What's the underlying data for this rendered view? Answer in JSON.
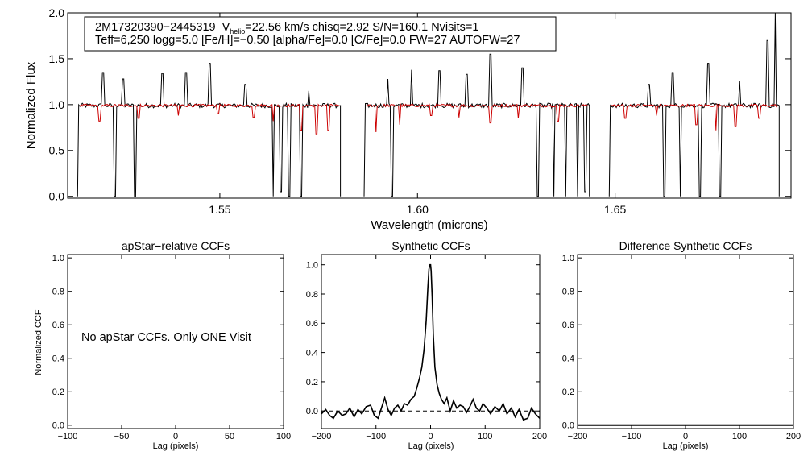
{
  "chart_data": [
    {
      "type": "line",
      "xlabel": "Wavelength (microns)",
      "ylabel": "Normalized Flux",
      "xlim": [
        1.5115,
        1.6945
      ],
      "ylim": [
        -0.02,
        2.0
      ],
      "xticks": [
        1.55,
        1.6,
        1.65
      ],
      "xtick_labels": [
        "1.55",
        "1.60",
        "1.65"
      ],
      "yticks": [
        0.0,
        0.5,
        1.0,
        1.5,
        2.0
      ],
      "ytick_labels": [
        "0.0",
        "0.5",
        "1.0",
        "1.5",
        "2.0"
      ],
      "annotation": {
        "star_id": "2M17320390−2445319",
        "v_symbol": "V",
        "v_sub": "helio",
        "line1_rest": "=22.56 km/s  chisq=2.92  S/N=160.1  Nvisits=1",
        "line2": "Teff=6,250 logg=5.0 [Fe/H]=−0.50 [alpha/Fe]=0.0 [C/Fe]=0.0 FW=27 AUTOFW=27"
      },
      "chips": [
        [
          1.514,
          1.5805
        ],
        [
          1.5865,
          1.6435
        ],
        [
          1.6485,
          1.6915
        ]
      ],
      "continuum": 0.99,
      "series": [
        {
          "color": "#000000",
          "emission_spikes": [
            [
              1.5205,
              1.35
            ],
            [
              1.5255,
              1.28
            ],
            [
              1.5355,
              1.34
            ],
            [
              1.5415,
              1.35
            ],
            [
              1.5475,
              1.45
            ],
            [
              1.5565,
              1.22
            ],
            [
              1.5725,
              1.15
            ],
            [
              1.5925,
              1.28
            ],
            [
              1.5985,
              1.38
            ],
            [
              1.6055,
              1.37
            ],
            [
              1.6125,
              1.33
            ],
            [
              1.6185,
              1.55
            ],
            [
              1.6265,
              1.4
            ],
            [
              1.6585,
              1.22
            ],
            [
              1.6645,
              1.35
            ],
            [
              1.6735,
              1.45
            ],
            [
              1.6815,
              1.26
            ],
            [
              1.6885,
              1.7
            ],
            [
              1.6905,
              2.0
            ]
          ],
          "deep_dips": [
            [
              1.5235,
              0.0
            ],
            [
              1.5285,
              0.0
            ],
            [
              1.5635,
              0.0
            ],
            [
              1.5655,
              0.05
            ],
            [
              1.5675,
              0.0
            ],
            [
              1.5705,
              0.0
            ],
            [
              1.5935,
              0.0
            ],
            [
              1.6305,
              0.0
            ],
            [
              1.6345,
              0.0
            ],
            [
              1.6375,
              0.0
            ],
            [
              1.6405,
              0.0
            ],
            [
              1.6425,
              0.05
            ],
            [
              1.6625,
              0.0
            ],
            [
              1.6665,
              0.0
            ],
            [
              1.6715,
              0.0
            ],
            [
              1.6765,
              0.0
            ]
          ]
        },
        {
          "color": "#cc0000",
          "absorption": [
            [
              1.5195,
              0.82
            ],
            [
              1.5295,
              0.85
            ],
            [
              1.5395,
              0.88
            ],
            [
              1.5495,
              0.9
            ],
            [
              1.5585,
              0.86
            ],
            [
              1.5635,
              0.82
            ],
            [
              1.5705,
              0.72
            ],
            [
              1.5745,
              0.68
            ],
            [
              1.5775,
              0.72
            ],
            [
              1.5895,
              0.7
            ],
            [
              1.5955,
              0.78
            ],
            [
              1.6035,
              0.88
            ],
            [
              1.6105,
              0.86
            ],
            [
              1.6185,
              0.8
            ],
            [
              1.6255,
              0.85
            ],
            [
              1.6355,
              0.82
            ],
            [
              1.6525,
              0.85
            ],
            [
              1.6605,
              0.88
            ],
            [
              1.6705,
              0.78
            ],
            [
              1.6755,
              0.72
            ],
            [
              1.6805,
              0.76
            ],
            [
              1.6865,
              0.85
            ]
          ]
        }
      ]
    },
    {
      "type": "line",
      "title": "apStar−relative CCFs",
      "xlabel": "Lag (pixels)",
      "ylabel": "Normalized CCF",
      "xlim": [
        -100,
        100
      ],
      "ylim": [
        -0.02,
        1.02
      ],
      "xticks": [
        -100,
        -50,
        0,
        50,
        100
      ],
      "xtick_labels": [
        "−100",
        "−50",
        "0",
        "50",
        "100"
      ],
      "yticks": [
        0.0,
        0.2,
        0.4,
        0.6,
        0.8,
        1.0
      ],
      "ytick_labels": [
        "0.0",
        "0.2",
        "0.4",
        "0.6",
        "0.8",
        "1.0"
      ],
      "message": "No apStar CCFs.  Only ONE Visit",
      "series": []
    },
    {
      "type": "line",
      "title": "Synthetic CCFs",
      "xlabel": "Lag (pixels)",
      "xlim": [
        -200,
        200
      ],
      "ylim": [
        -0.12,
        1.07
      ],
      "xticks": [
        -200,
        -100,
        0,
        100,
        200
      ],
      "xtick_labels": [
        "−200",
        "−100",
        "0",
        "100",
        "200"
      ],
      "yticks": [
        0.0,
        0.2,
        0.4,
        0.6,
        0.8,
        1.0
      ],
      "ytick_labels": [
        "0.0",
        "0.2",
        "0.4",
        "0.6",
        "0.8",
        "1.0"
      ],
      "reference_line_y": 0.0,
      "series": [
        {
          "color": "#000000",
          "x": [
            -200,
            -192,
            -185,
            -178,
            -170,
            -162,
            -155,
            -148,
            -140,
            -133,
            -126,
            -118,
            -110,
            -103,
            -96,
            -90,
            -84,
            -78,
            -72,
            -66,
            -60,
            -54,
            -48,
            -42,
            -36,
            -30,
            -25,
            -20,
            -16,
            -12,
            -8,
            -5,
            -3,
            -1,
            0,
            1,
            3,
            5,
            8,
            12,
            16,
            20,
            25,
            30,
            36,
            42,
            48,
            54,
            60,
            66,
            72,
            78,
            84,
            90,
            96,
            103,
            110,
            118,
            126,
            133,
            140,
            148,
            155,
            162,
            170,
            178,
            185,
            192,
            200
          ],
          "y": [
            -0.02,
            0.01,
            -0.03,
            -0.05,
            0.0,
            -0.03,
            -0.02,
            0.02,
            -0.04,
            0.01,
            -0.02,
            0.03,
            0.04,
            -0.03,
            -0.05,
            0.02,
            0.09,
            0.01,
            -0.03,
            0.02,
            0.04,
            0.0,
            0.05,
            0.04,
            0.08,
            0.1,
            0.16,
            0.23,
            0.3,
            0.42,
            0.62,
            0.84,
            0.97,
            1.0,
            1.0,
            0.96,
            0.78,
            0.52,
            0.3,
            0.18,
            0.12,
            0.08,
            0.05,
            0.09,
            0.0,
            0.07,
            0.02,
            0.04,
            0.03,
            -0.01,
            0.03,
            0.08,
            0.02,
            0.0,
            0.05,
            0.02,
            -0.02,
            0.03,
            0.0,
            0.05,
            -0.02,
            0.02,
            -0.04,
            0.01,
            -0.06,
            -0.05,
            0.02,
            -0.02,
            -0.05
          ]
        }
      ]
    },
    {
      "type": "line",
      "title": "Difference Synthetic CCFs",
      "xlabel": "Lag (pixels)",
      "xlim": [
        -200,
        200
      ],
      "ylim": [
        -0.02,
        1.02
      ],
      "xticks": [
        -200,
        -100,
        0,
        100,
        200
      ],
      "xtick_labels": [
        "−200",
        "−100",
        "0",
        "100",
        "200"
      ],
      "yticks": [
        0.0,
        0.2,
        0.4,
        0.6,
        0.8,
        1.0
      ],
      "ytick_labels": [
        "0.0",
        "0.2",
        "0.4",
        "0.6",
        "0.8",
        "1.0"
      ],
      "series": [
        {
          "color": "#000000",
          "x": [
            -200,
            200
          ],
          "y": [
            0.0,
            0.0
          ]
        }
      ]
    }
  ]
}
